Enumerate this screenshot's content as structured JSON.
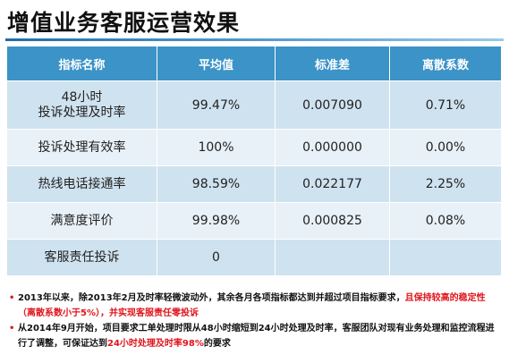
{
  "title": "增值业务客服运营效果",
  "table": {
    "headers": [
      "指标名称",
      "平均值",
      "标准差",
      "离散系数"
    ],
    "rows": [
      {
        "name_lines": [
          "48小时",
          "投诉处理及时率"
        ],
        "mean": "99.47%",
        "std": "0.007090",
        "cv": "0.71%"
      },
      {
        "name_lines": [
          "投诉处理有效率"
        ],
        "mean": "100%",
        "std": "0.000000",
        "cv": "0.00%"
      },
      {
        "name_lines": [
          "热线电话接通率"
        ],
        "mean": "98.59%",
        "std": "0.022177",
        "cv": "2.25%"
      },
      {
        "name_lines": [
          "满意度评价"
        ],
        "mean": "99.98%",
        "std": "0.000825",
        "cv": "0.08%"
      },
      {
        "name_lines": [
          "客服责任投诉"
        ],
        "mean": "0",
        "std": "",
        "cv": ""
      }
    ]
  },
  "notes": [
    {
      "bullet": "•",
      "text_a": "2013年以来，除2013年2月及时率轻微波动外，其余各月各项指标都达到并超过项目指标要求，",
      "text_b_red": "且保持较高的稳定性（离散系数小于5%），并实现客服责任零投诉"
    },
    {
      "bullet": "•",
      "text_a": "从2014年9月开始，项目要求工单处理时限从48小时缩短到24小时处理及时率，客服团队对现有业务处理和监控流程进行了调整，可保证达到",
      "text_b_red": "24小时处理及时率98%",
      "text_c": "的要求"
    }
  ],
  "colors": {
    "header_bg": "#3b93c7",
    "row_dark": "#cfe2ef",
    "row_light": "#e8f1f8",
    "highlight_red": "#e0141c"
  }
}
